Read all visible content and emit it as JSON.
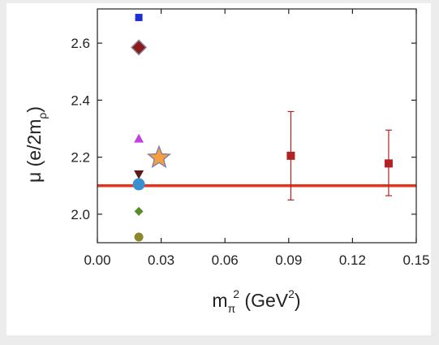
{
  "chart_data": {
    "type": "scatter",
    "title": "",
    "xlabel": {
      "base": "m",
      "sub": "π",
      "sup": "2",
      "unit_pre": " (GeV",
      "unit_sup": "2",
      "unit_post": ")"
    },
    "ylabel": {
      "base": "μ (e/2m",
      "sub": "ρ",
      "post": ")"
    },
    "xlim": [
      0.0,
      0.15
    ],
    "ylim": [
      1.9,
      2.72
    ],
    "xticks": [
      "0.00",
      "0.03",
      "0.06",
      "0.09",
      "0.12",
      "0.15"
    ],
    "xtick_values": [
      0.0,
      0.03,
      0.06,
      0.09,
      0.12,
      0.15
    ],
    "yticks": [
      "2.0",
      "2.2",
      "2.4",
      "2.6"
    ],
    "ytick_values": [
      2.0,
      2.2,
      2.4,
      2.6
    ],
    "grid": false,
    "reference_line": {
      "y": 2.1,
      "color": "#e8321e"
    },
    "points": [
      {
        "x": 0.0195,
        "y": 2.69,
        "marker": "square",
        "color": "#1f2fd6"
      },
      {
        "x": 0.0195,
        "y": 2.585,
        "marker": "diamond",
        "color": "#8b1a1a"
      },
      {
        "x": 0.0195,
        "y": 2.265,
        "marker": "triangle-up",
        "color": "#c040e0"
      },
      {
        "x": 0.029,
        "y": 2.198,
        "marker": "star",
        "color": "#f4a040"
      },
      {
        "x": 0.0195,
        "y": 2.14,
        "marker": "triangle-down",
        "color": "#5a1a1a"
      },
      {
        "x": 0.0195,
        "y": 2.105,
        "marker": "circle",
        "color": "#3a8fd0"
      },
      {
        "x": 0.0195,
        "y": 2.01,
        "marker": "diamond",
        "color": "#5a8a2a"
      },
      {
        "x": 0.0195,
        "y": 1.92,
        "marker": "circle",
        "color": "#8a8a2a"
      },
      {
        "x": 0.091,
        "y": 2.205,
        "marker": "square",
        "color": "#b22222",
        "yerr": [
          2.05,
          2.36
        ]
      },
      {
        "x": 0.137,
        "y": 2.178,
        "marker": "square",
        "color": "#b22222",
        "yerr": [
          2.065,
          2.295
        ]
      }
    ]
  }
}
